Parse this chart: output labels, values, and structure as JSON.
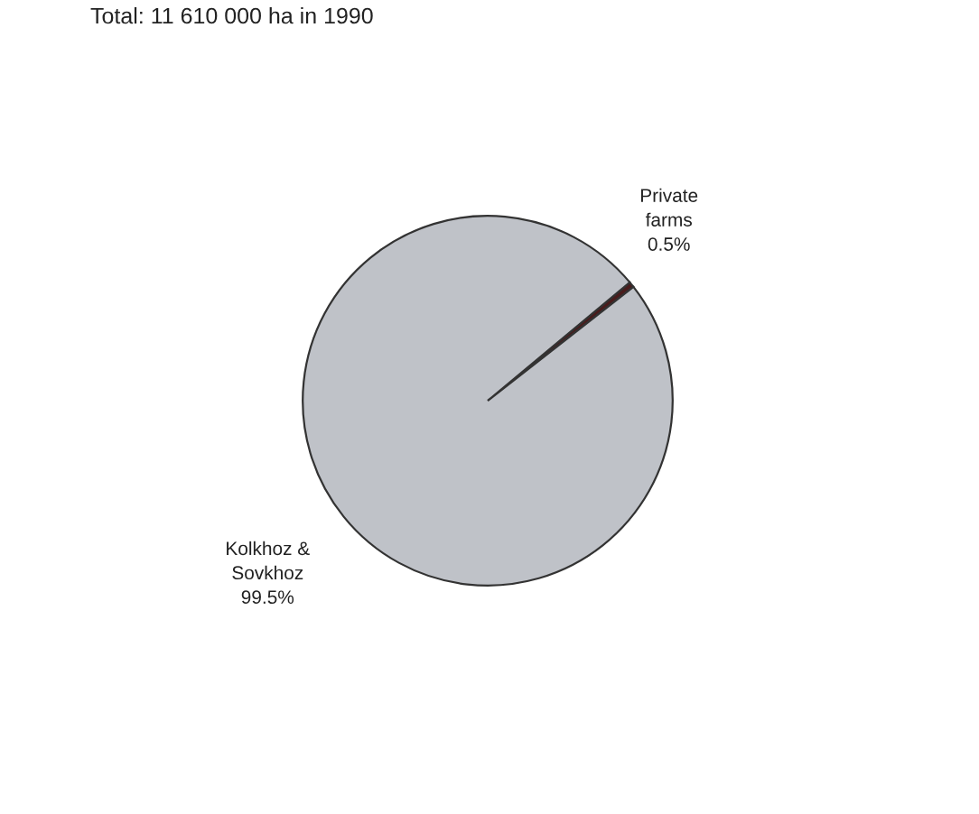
{
  "chart_data": {
    "type": "pie",
    "title": "Total: 11 610 000 ha in 1990",
    "categories": [
      "Private\nfarms",
      "Kolkhoz &\nSovkhoz"
    ],
    "values": [
      0.5,
      99.5
    ],
    "value_labels": [
      "0.5%",
      "99.5%"
    ],
    "colors": [
      "#4a1c1c",
      "#bfc2c8"
    ]
  }
}
